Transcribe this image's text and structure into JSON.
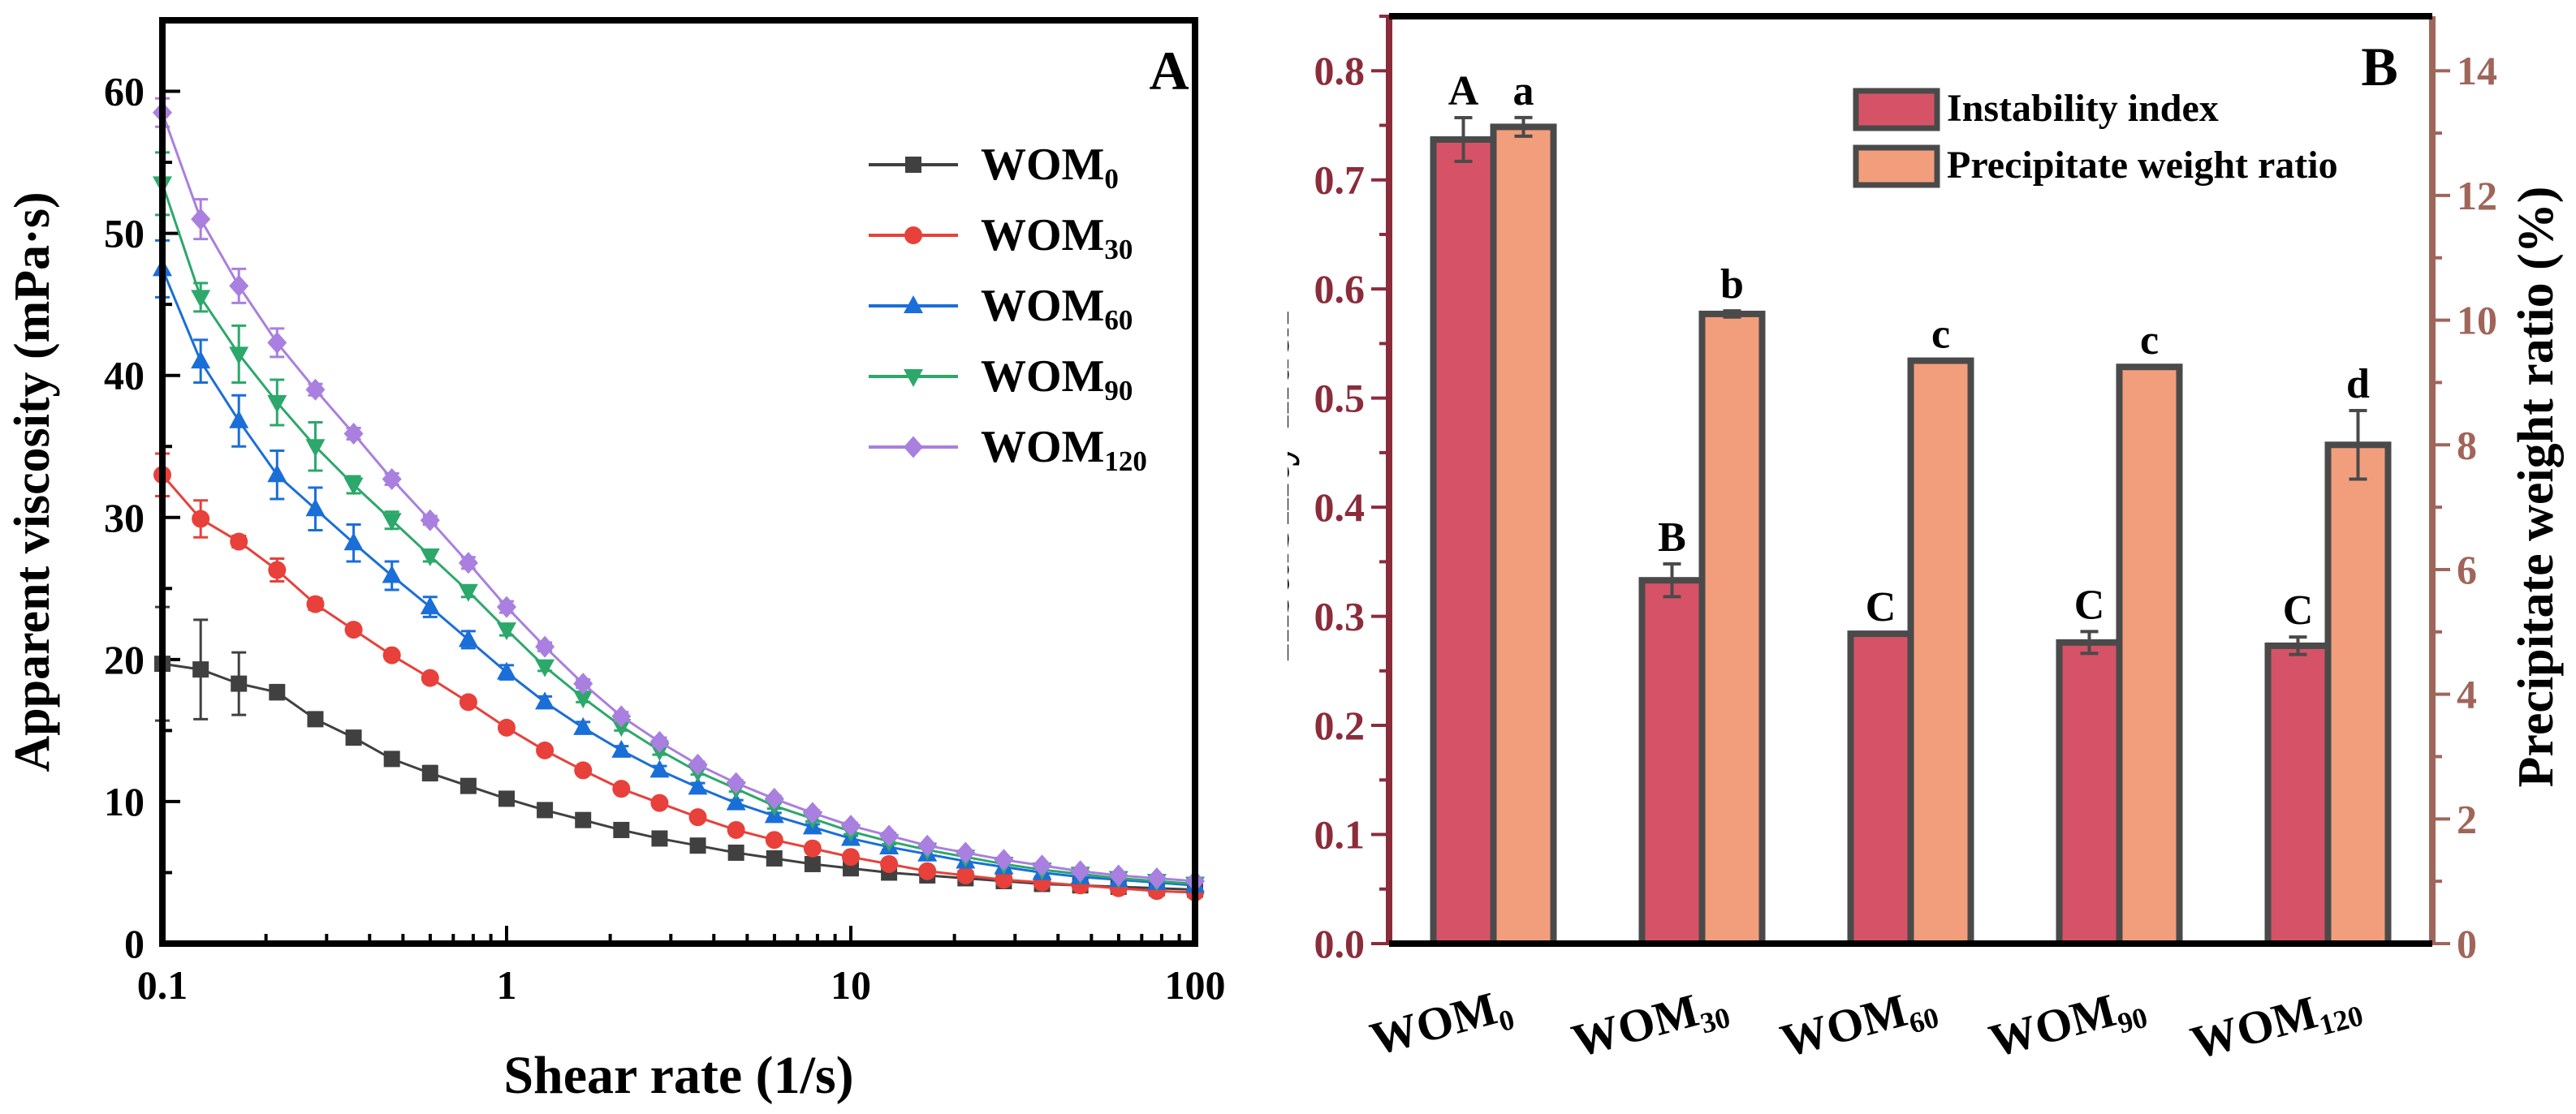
{
  "chart_data": [
    {
      "type": "line",
      "panel_label": "A",
      "xlabel": "Shear rate (1/s)",
      "ylabel": "Apparent viscosity (mPa·s)",
      "xscale": "log",
      "xlim": [
        0.1,
        100
      ],
      "ylim": [
        0,
        65
      ],
      "x_ticks": [
        0.1,
        1,
        10,
        100
      ],
      "x_tick_labels": [
        "0.1",
        "1",
        "10",
        "100"
      ],
      "y_ticks": [
        0,
        10,
        20,
        30,
        40,
        50,
        60
      ],
      "y_tick_labels": [
        "0",
        "10",
        "20",
        "30",
        "40",
        "50",
        "60"
      ],
      "legend_position": "top-right",
      "x": [
        0.1,
        0.1292,
        0.1668,
        0.2154,
        0.2783,
        0.3594,
        0.4642,
        0.5995,
        0.7743,
        1.0,
        1.2915,
        1.6681,
        2.1544,
        2.7826,
        3.5938,
        4.6416,
        5.9948,
        7.7426,
        10.0,
        12.915,
        16.681,
        21.544,
        27.826,
        35.938,
        46.416,
        59.948,
        77.426,
        100.0
      ],
      "series": [
        {
          "name": "WOM0",
          "name_main": "WOM",
          "name_sub": "0",
          "color": "#404040",
          "marker": "square",
          "values": [
            19.7,
            19.3,
            18.3,
            17.7,
            15.8,
            14.5,
            13.0,
            12.0,
            11.1,
            10.2,
            9.4,
            8.7,
            8.0,
            7.4,
            6.9,
            6.4,
            6.0,
            5.6,
            5.3,
            5.0,
            4.8,
            4.6,
            4.4,
            4.2,
            4.1,
            4.0,
            3.9,
            3.8
          ],
          "errors": [
            4.0,
            3.5,
            2.2,
            0.5,
            0.4,
            0.4,
            0.4,
            0.5,
            0.3,
            0.3,
            0.2,
            0.2,
            0.2,
            0.2,
            0.2,
            0.2,
            0.1,
            0.1,
            0.1,
            0.1,
            0.1,
            0.1,
            0.1,
            0.1,
            0.1,
            0.1,
            0.1,
            0.1
          ]
        },
        {
          "name": "WOM30",
          "name_main": "WOM",
          "name_sub": "30",
          "color": "#e8403a",
          "marker": "circle",
          "values": [
            33.0,
            29.9,
            28.3,
            26.3,
            23.9,
            22.1,
            20.3,
            18.7,
            17.0,
            15.2,
            13.6,
            12.2,
            10.9,
            9.9,
            8.9,
            8.0,
            7.3,
            6.7,
            6.1,
            5.6,
            5.1,
            4.8,
            4.5,
            4.3,
            4.1,
            3.9,
            3.7,
            3.6
          ],
          "errors": [
            1.5,
            1.3,
            0.4,
            0.8,
            0.4,
            0.3,
            0.3,
            0.3,
            0.3,
            0.3,
            0.2,
            0.2,
            0.2,
            0.2,
            0.2,
            0.1,
            0.1,
            0.1,
            0.1,
            0.1,
            0.1,
            0.1,
            0.1,
            0.1,
            0.1,
            0.1,
            0.1,
            0.1
          ]
        },
        {
          "name": "WOM60",
          "name_main": "WOM",
          "name_sub": "60",
          "color": "#1a6ed8",
          "marker": "triangle-up",
          "values": [
            47.5,
            41.0,
            36.8,
            33.0,
            30.6,
            28.2,
            25.9,
            23.7,
            21.4,
            19.1,
            17.0,
            15.2,
            13.6,
            12.2,
            11.0,
            9.9,
            9.0,
            8.2,
            7.4,
            6.8,
            6.3,
            5.8,
            5.4,
            5.0,
            4.7,
            4.5,
            4.3,
            4.1
          ],
          "errors": [
            2.0,
            1.5,
            1.8,
            1.7,
            1.5,
            1.3,
            1.0,
            0.7,
            0.6,
            0.5,
            0.4,
            0.4,
            0.3,
            0.3,
            0.3,
            0.2,
            0.2,
            0.2,
            0.2,
            0.2,
            0.1,
            0.1,
            0.1,
            0.1,
            0.1,
            0.1,
            0.1,
            0.1
          ]
        },
        {
          "name": "WOM90",
          "name_main": "WOM",
          "name_sub": "90",
          "color": "#2ca86a",
          "marker": "triangle-down",
          "values": [
            53.5,
            45.5,
            41.5,
            38.1,
            35.0,
            32.3,
            29.8,
            27.3,
            24.8,
            22.1,
            19.5,
            17.3,
            15.3,
            13.6,
            12.1,
            10.9,
            9.7,
            8.8,
            7.9,
            7.2,
            6.6,
            6.1,
            5.6,
            5.2,
            4.9,
            4.6,
            4.4,
            4.2
          ],
          "errors": [
            2.2,
            1.0,
            2.0,
            1.6,
            1.7,
            0.6,
            0.6,
            0.4,
            0.4,
            0.4,
            0.3,
            0.3,
            0.3,
            0.3,
            0.2,
            0.2,
            0.2,
            0.2,
            0.2,
            0.2,
            0.1,
            0.1,
            0.1,
            0.1,
            0.1,
            0.1,
            0.1,
            0.1
          ]
        },
        {
          "name": "WOM120",
          "name_main": "WOM",
          "name_sub": "120",
          "color": "#a97fe0",
          "marker": "diamond",
          "values": [
            58.5,
            51.0,
            46.3,
            42.3,
            39.0,
            35.9,
            32.7,
            29.8,
            26.8,
            23.7,
            20.9,
            18.3,
            16.0,
            14.2,
            12.6,
            11.3,
            10.2,
            9.2,
            8.3,
            7.6,
            6.9,
            6.4,
            5.9,
            5.5,
            5.1,
            4.8,
            4.6,
            4.4
          ],
          "errors": [
            1.0,
            1.4,
            1.2,
            1.0,
            0.4,
            0.4,
            0.4,
            0.3,
            0.4,
            0.4,
            0.3,
            0.3,
            0.3,
            0.3,
            0.2,
            0.2,
            0.2,
            0.2,
            0.2,
            0.2,
            0.1,
            0.1,
            0.1,
            0.1,
            0.1,
            0.1,
            0.1,
            0.1
          ]
        }
      ]
    },
    {
      "type": "bar",
      "panel_label": "B",
      "categories": [
        "WOM0",
        "WOM30",
        "WOM60",
        "WOM90",
        "WOM120"
      ],
      "category_main": [
        "WOM",
        "WOM",
        "WOM",
        "WOM",
        "WOM"
      ],
      "category_sub": [
        "0",
        "30",
        "60",
        "90",
        "120"
      ],
      "ylabel": "Instability index",
      "ylabel_right": "Precipitate weight ratio (%)",
      "ylim": [
        0,
        0.85
      ],
      "ylim_right": [
        0,
        14.875
      ],
      "y_ticks": [
        0.0,
        0.1,
        0.2,
        0.3,
        0.4,
        0.5,
        0.6,
        0.7,
        0.8
      ],
      "y_tick_labels": [
        "0.0",
        "0.1",
        "0.2",
        "0.3",
        "0.4",
        "0.5",
        "0.6",
        "0.7",
        "0.8"
      ],
      "y_ticks_right": [
        0,
        2,
        4,
        6,
        8,
        10,
        12,
        14
      ],
      "y_tick_labels_right": [
        "0",
        "2",
        "4",
        "6",
        "8",
        "10",
        "12",
        "14"
      ],
      "legend_position": "top-right",
      "left_axis_color": "#8b2c3a",
      "right_axis_color": "#a0655a",
      "series": [
        {
          "name": "Instability index",
          "axis": "left",
          "color": "#d65367",
          "values": [
            0.737,
            0.333,
            0.284,
            0.276,
            0.273
          ],
          "errors": [
            0.02,
            0.015,
            0.0,
            0.01,
            0.008
          ],
          "letters": [
            "A",
            "B",
            "C",
            "C",
            "C"
          ]
        },
        {
          "name": "Precipitate weight ratio",
          "axis": "right",
          "color": "#f29e7c",
          "values": [
            13.1,
            10.1,
            9.35,
            9.25,
            8.0
          ],
          "errors": [
            0.15,
            0.05,
            0.0,
            0.0,
            0.55
          ],
          "letters": [
            "a",
            "b",
            "c",
            "c",
            "d"
          ]
        }
      ]
    }
  ]
}
